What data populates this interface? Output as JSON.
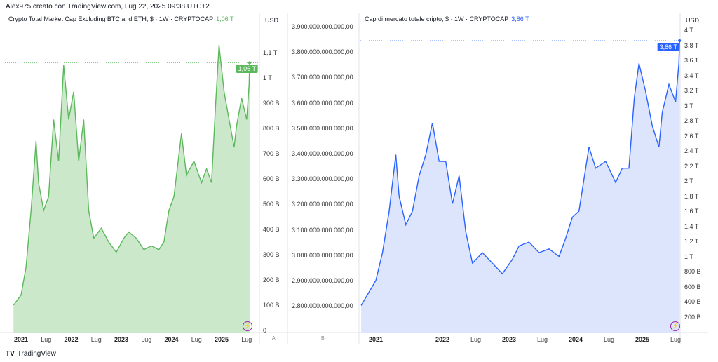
{
  "header": "Alex975 creato con TradingView.com, Lug 22, 2025 09:38 UTC+2",
  "footer_logo": "TradingView",
  "chart_data": [
    {
      "type": "area",
      "title": "Crypto Total Market Cap Excluding BTC and ETH, $ · 1W · CRYPTOCAP",
      "last_value_label": "1,06 T",
      "currency": "USD",
      "color": "#5cb85c",
      "fill": "#cbe8cb",
      "unit": "billion USD",
      "ylim": [
        0,
        1260
      ],
      "y_ticks": [
        {
          "v": 0,
          "l": "0"
        },
        {
          "v": 100,
          "l": "100 B"
        },
        {
          "v": 200,
          "l": "200 B"
        },
        {
          "v": 300,
          "l": "300 B"
        },
        {
          "v": 400,
          "l": "400 B"
        },
        {
          "v": 500,
          "l": "500 B"
        },
        {
          "v": 600,
          "l": "600 B"
        },
        {
          "v": 700,
          "l": "700 B"
        },
        {
          "v": 800,
          "l": "800 B"
        },
        {
          "v": 900,
          "l": "900 B"
        },
        {
          "v": 1000,
          "l": "1 T"
        },
        {
          "v": 1100,
          "l": "1,1 T"
        }
      ],
      "x_ticks": [
        {
          "t": 2021,
          "l": "2021",
          "b": true
        },
        {
          "t": 2021.5,
          "l": "Lug"
        },
        {
          "t": 2022,
          "l": "2022",
          "b": true
        },
        {
          "t": 2022.5,
          "l": "Lug"
        },
        {
          "t": 2023,
          "l": "2023",
          "b": true
        },
        {
          "t": 2023.5,
          "l": "Lug"
        },
        {
          "t": 2024,
          "l": "2024",
          "b": true
        },
        {
          "t": 2024.5,
          "l": "Lug"
        },
        {
          "t": 2025,
          "l": "2025",
          "b": true
        },
        {
          "t": 2025.5,
          "l": "Lug"
        }
      ],
      "scale_label": "A",
      "points": [
        [
          2020.85,
          100
        ],
        [
          2021.0,
          140
        ],
        [
          2021.1,
          250
        ],
        [
          2021.2,
          475
        ],
        [
          2021.3,
          750
        ],
        [
          2021.35,
          585
        ],
        [
          2021.45,
          475
        ],
        [
          2021.55,
          530
        ],
        [
          2021.65,
          835
        ],
        [
          2021.75,
          670
        ],
        [
          2021.85,
          1050
        ],
        [
          2021.95,
          835
        ],
        [
          2022.05,
          945
        ],
        [
          2022.15,
          670
        ],
        [
          2022.25,
          835
        ],
        [
          2022.35,
          475
        ],
        [
          2022.45,
          365
        ],
        [
          2022.6,
          405
        ],
        [
          2022.75,
          350
        ],
        [
          2022.9,
          310
        ],
        [
          2023.05,
          365
        ],
        [
          2023.15,
          390
        ],
        [
          2023.3,
          365
        ],
        [
          2023.45,
          320
        ],
        [
          2023.6,
          335
        ],
        [
          2023.75,
          320
        ],
        [
          2023.85,
          350
        ],
        [
          2023.95,
          475
        ],
        [
          2024.05,
          530
        ],
        [
          2024.2,
          780
        ],
        [
          2024.3,
          615
        ],
        [
          2024.45,
          670
        ],
        [
          2024.6,
          585
        ],
        [
          2024.7,
          640
        ],
        [
          2024.8,
          585
        ],
        [
          2024.88,
          890
        ],
        [
          2024.95,
          1130
        ],
        [
          2025.05,
          945
        ],
        [
          2025.15,
          835
        ],
        [
          2025.25,
          725
        ],
        [
          2025.3,
          810
        ],
        [
          2025.4,
          920
        ],
        [
          2025.5,
          835
        ],
        [
          2025.55,
          975
        ],
        [
          2025.56,
          1060
        ]
      ]
    },
    {
      "type": "area",
      "title": "Cap di mercato totale cripto, $ · 1W · CRYPTOCAP",
      "last_value_label": "3,86 T",
      "currency": "USD",
      "color": "#2962ff",
      "fill": "#dde5fd",
      "unit": "trillion USD",
      "ylim": [
        0,
        4.2
      ],
      "y_ticks": [
        {
          "v": 0.2,
          "l": "200 B"
        },
        {
          "v": 0.4,
          "l": "400 B"
        },
        {
          "v": 0.6,
          "l": "600 B"
        },
        {
          "v": 0.8,
          "l": "800 B"
        },
        {
          "v": 1.0,
          "l": "1 T"
        },
        {
          "v": 1.2,
          "l": "1,2 T"
        },
        {
          "v": 1.4,
          "l": "1,4 T"
        },
        {
          "v": 1.6,
          "l": "1,6 T"
        },
        {
          "v": 1.8,
          "l": "1,8 T"
        },
        {
          "v": 2.0,
          "l": "2 T"
        },
        {
          "v": 2.2,
          "l": "2,2 T"
        },
        {
          "v": 2.4,
          "l": "2,4 T"
        },
        {
          "v": 2.6,
          "l": "2,6 T"
        },
        {
          "v": 2.8,
          "l": "2,8 T"
        },
        {
          "v": 3.0,
          "l": "3 T"
        },
        {
          "v": 3.2,
          "l": "3,2 T"
        },
        {
          "v": 3.4,
          "l": "3,4 T"
        },
        {
          "v": 3.6,
          "l": "3,6 T"
        },
        {
          "v": 3.8,
          "l": "3,8 T"
        },
        {
          "v": 4.0,
          "l": "4 T"
        }
      ],
      "x_ticks": [
        {
          "t": 2021,
          "l": "2021",
          "b": true
        },
        {
          "t": 2022,
          "l": "2022",
          "b": true
        },
        {
          "t": 2022.5,
          "l": "Lug"
        },
        {
          "t": 2023,
          "l": "2023",
          "b": true
        },
        {
          "t": 2023.5,
          "l": "Lug"
        },
        {
          "t": 2024,
          "l": "2024",
          "b": true
        },
        {
          "t": 2024.5,
          "l": "Lug"
        },
        {
          "t": 2025,
          "l": "2025",
          "b": true
        },
        {
          "t": 2025.5,
          "l": "Lug"
        }
      ],
      "scale_label": "B",
      "extra_axis_ticks": [
        "3.900.000.000.000,00",
        "3.800.000.000.000,00",
        "3.700.000.000.000,00",
        "3.600.000.000.000,00",
        "3.500.000.000.000,00",
        "3.400.000.000.000,00",
        "3.300.000.000.000,00",
        "3.200.000.000.000,00",
        "3.100.000.000.000,00",
        "3.000.000.000.000,00",
        "2.900.000.000.000,00",
        "2.800.000.000.000,00"
      ],
      "points": [
        [
          2020.78,
          0.35
        ],
        [
          2021.0,
          0.68
        ],
        [
          2021.1,
          1.05
        ],
        [
          2021.2,
          1.6
        ],
        [
          2021.3,
          2.35
        ],
        [
          2021.35,
          1.8
        ],
        [
          2021.45,
          1.42
        ],
        [
          2021.55,
          1.6
        ],
        [
          2021.65,
          2.07
        ],
        [
          2021.75,
          2.35
        ],
        [
          2021.85,
          2.77
        ],
        [
          2021.95,
          2.26
        ],
        [
          2022.05,
          2.26
        ],
        [
          2022.15,
          1.7
        ],
        [
          2022.25,
          2.07
        ],
        [
          2022.35,
          1.33
        ],
        [
          2022.45,
          0.91
        ],
        [
          2022.6,
          1.05
        ],
        [
          2022.75,
          0.91
        ],
        [
          2022.9,
          0.77
        ],
        [
          2023.05,
          0.96
        ],
        [
          2023.15,
          1.14
        ],
        [
          2023.3,
          1.19
        ],
        [
          2023.45,
          1.05
        ],
        [
          2023.6,
          1.1
        ],
        [
          2023.75,
          1.0
        ],
        [
          2023.85,
          1.24
        ],
        [
          2023.95,
          1.52
        ],
        [
          2024.05,
          1.6
        ],
        [
          2024.2,
          2.45
        ],
        [
          2024.3,
          2.17
        ],
        [
          2024.45,
          2.26
        ],
        [
          2024.6,
          1.98
        ],
        [
          2024.7,
          2.17
        ],
        [
          2024.8,
          2.17
        ],
        [
          2024.88,
          3.1
        ],
        [
          2024.95,
          3.56
        ],
        [
          2025.05,
          3.19
        ],
        [
          2025.15,
          2.73
        ],
        [
          2025.25,
          2.45
        ],
        [
          2025.3,
          2.91
        ],
        [
          2025.4,
          3.28
        ],
        [
          2025.5,
          3.05
        ],
        [
          2025.55,
          3.56
        ],
        [
          2025.56,
          3.86
        ]
      ]
    }
  ]
}
